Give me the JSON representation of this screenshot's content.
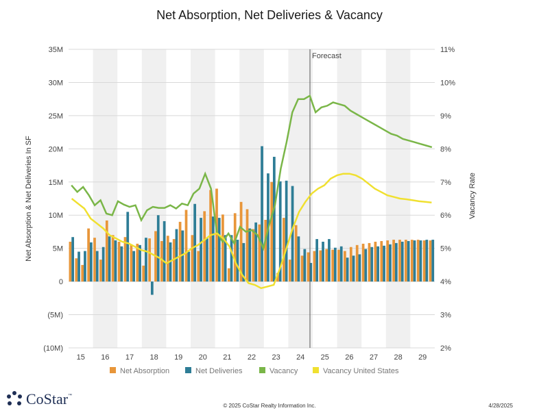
{
  "chart_data": {
    "type": "bar",
    "title": "Net Absorption, Net Deliveries & Vacancy",
    "ylabel": "Net Absorption & Net Deliveries In SF",
    "y2label": "Vacancy Rate",
    "y_ticks": [
      "(10M)",
      "(5M)",
      "0",
      "5M",
      "10M",
      "15M",
      "20M",
      "25M",
      "30M",
      "35M"
    ],
    "y2_ticks": [
      "2%",
      "3%",
      "4%",
      "5%",
      "6%",
      "7%",
      "8%",
      "9%",
      "10%",
      "11%"
    ],
    "ylim": [
      -10,
      35
    ],
    "y2lim": [
      2,
      11
    ],
    "x_labels": [
      "15",
      "16",
      "17",
      "18",
      "19",
      "20",
      "21",
      "22",
      "23",
      "24",
      "25",
      "26",
      "27",
      "28",
      "29"
    ],
    "forecast_label": "Forecast",
    "forecast_start_index": 40,
    "grid": true,
    "legend_position": "bottom",
    "colors": {
      "absorption": "#e8963a",
      "deliveries": "#2e7d96",
      "vacancy": "#7ab648",
      "vacancy_us": "#f0e030"
    },
    "series": [
      {
        "name": "Net Absorption",
        "kind": "bar",
        "values": [
          6.0,
          3.5,
          2.5,
          8.0,
          6.6,
          3.3,
          9.2,
          7.0,
          6.0,
          6.7,
          5.6,
          5.7,
          2.4,
          6.5,
          7.6,
          6.1,
          6.9,
          6.4,
          9.0,
          10.8,
          7.0,
          4.6,
          10.6,
          13.8,
          14.0,
          10.1,
          2.0,
          10.3,
          12.0,
          10.9,
          7.9,
          8.6,
          9.3,
          15.0,
          1.3,
          9.6,
          3.3,
          8.5,
          3.9,
          4.4,
          4.6,
          4.7,
          4.9,
          4.8,
          4.8,
          4.6,
          5.2,
          5.5,
          5.7,
          5.8,
          6.0,
          6.1,
          6.2,
          6.3,
          6.3,
          6.3,
          6.3,
          6.3,
          6.2,
          6.2
        ]
      },
      {
        "name": "Net Deliveries",
        "kind": "bar",
        "values": [
          6.7,
          4.5,
          4.6,
          5.9,
          4.6,
          5.2,
          6.8,
          6.2,
          5.3,
          10.5,
          4.6,
          5.5,
          6.6,
          -2.0,
          10.0,
          9.1,
          5.9,
          7.9,
          7.7,
          4.5,
          11.7,
          9.6,
          6.5,
          9.8,
          9.6,
          7.0,
          7.0,
          6.3,
          5.8,
          8.0,
          8.9,
          20.4,
          16.3,
          18.8,
          15.1,
          15.2,
          14.4,
          6.8,
          4.9,
          2.8,
          6.4,
          6.0,
          6.4,
          5.1,
          5.3,
          3.6,
          3.9,
          4.1,
          4.9,
          5.2,
          5.3,
          5.4,
          5.6,
          5.8,
          6.0,
          6.1,
          6.2,
          6.2,
          6.3,
          6.3
        ]
      },
      {
        "name": "Vacancy",
        "kind": "line",
        "axis": "y2",
        "values": [
          6.9,
          6.7,
          6.85,
          6.6,
          6.3,
          6.45,
          6.05,
          6.0,
          6.42,
          6.32,
          6.25,
          6.3,
          5.85,
          6.15,
          6.25,
          6.22,
          6.22,
          6.3,
          6.2,
          6.35,
          6.3,
          6.65,
          6.8,
          7.25,
          6.8,
          5.5,
          5.2,
          5.45,
          5.15,
          5.65,
          5.5,
          5.55,
          5.4,
          5.0,
          5.7,
          6.3,
          7.4,
          8.2,
          9.1,
          9.5,
          9.5,
          9.6,
          9.1,
          9.25,
          9.3,
          9.4,
          9.35,
          9.3,
          9.15,
          9.05,
          8.95,
          8.85,
          8.75,
          8.65,
          8.55,
          8.45,
          8.4,
          8.3,
          8.25,
          8.2,
          8.15,
          8.1,
          8.05
        ]
      },
      {
        "name": "Vacancy United States",
        "kind": "line",
        "axis": "y2",
        "values": [
          6.5,
          6.35,
          6.2,
          5.9,
          5.75,
          5.6,
          5.4,
          5.3,
          5.2,
          5.15,
          5.05,
          4.95,
          4.9,
          4.8,
          4.7,
          4.55,
          4.65,
          4.75,
          4.85,
          5.0,
          5.1,
          5.25,
          5.4,
          5.45,
          5.3,
          5.05,
          4.55,
          4.2,
          3.95,
          3.9,
          3.8,
          3.85,
          3.9,
          4.4,
          5.0,
          5.6,
          6.1,
          6.4,
          6.65,
          6.8,
          6.9,
          7.1,
          7.2,
          7.25,
          7.25,
          7.2,
          7.1,
          6.95,
          6.8,
          6.7,
          6.6,
          6.55,
          6.5,
          6.48,
          6.45,
          6.42,
          6.4,
          6.38
        ]
      }
    ]
  },
  "footer": {
    "logo_word": "CoStar",
    "logo_tm": "™",
    "copyright": "© 2025 CoStar Realty Information Inc.",
    "date": "4/28/2025"
  }
}
